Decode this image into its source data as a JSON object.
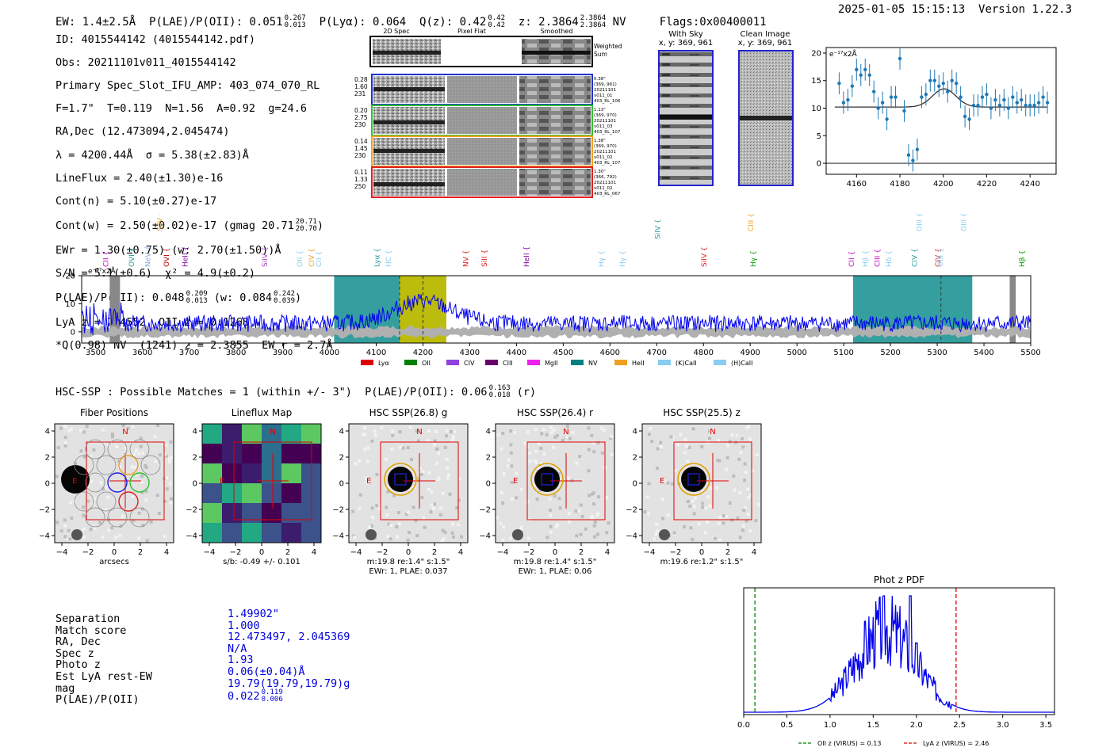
{
  "header": {
    "ew": "EW: 1.4±2.5Å",
    "plae_label": "P(LAE)/P(OII):",
    "plae_val": "0.051",
    "plae_hi": "0.267",
    "plae_lo": "0.013",
    "plya": "P(Lyα): 0.064",
    "qz_label": "Q(z): 0.42",
    "qz_hi": "0.42",
    "qz_lo": "0.42",
    "z_label": "z: 2.3864",
    "z_hi": "2.3864",
    "z_lo": "2.3864",
    "z_flag": "NV",
    "flags": "Flags:0x00400011",
    "timestamp": "2025-01-05 15:15:13",
    "version": "Version 1.22.3"
  },
  "info": {
    "l1": "ID: 4015544142 (4015544142.pdf)",
    "l2": "Obs: 20211101v011_4015544142",
    "l3": "Primary Spec_Slot_IFU_AMP: 403_074_070_RL",
    "l4": "F=1.7\"  T=0.119  N=1.56  A=0.92  g=24.6",
    "l5": "RA,Dec (12.473094,2.045474)",
    "l6": "λ = 4200.44Å  σ = 5.38(±2.83)Å",
    "l7": "LineFlux = 2.40(±1.30)e-16",
    "l8": "Cont(n) = 5.10(±0.27)e-17",
    "l9a": "Cont(w) = 2.50(±0.02)e-17 (gmag 20.71",
    "l9hi": "20.71",
    "l9lo": "20.70",
    "l9b": ")",
    "l10": "EWr = 1.30(±0.75) (w: 2.70(±1.50))Å",
    "l11": "S/N = 5.1(±0.6)  χ² = 4.9(±0.2)",
    "l12a": "P(LAE)/P(OII): 0.048",
    "l12hi": "0.209",
    "l12lo": "0.013",
    "l12b": "(w: 0.084",
    "l12hi2": "0.242",
    "l12lo2": "0.039",
    "l12c": ")",
    "l13": "LyA z = 2.4552  OII z = 0.1268",
    "l14": "*Q(0.98) NV  (1241) z = 2.3855  EW r = 2.7Å"
  },
  "cutout": {
    "col1": "2D Spec",
    "col2": "Pixel Flat",
    "col3": "Smoothed",
    "weighted": "Weighted",
    "sum": "Sum",
    "rows": [
      {
        "a": "0.28",
        "b": "1.60",
        "c": "231",
        "r1": "0.38\"",
        "r2": "(369, 961)",
        "r3": "20211101",
        "r4": "v011_01",
        "r5": "403_RL_106",
        "color": "#2030d0"
      },
      {
        "a": "0.20",
        "b": "2.75",
        "c": "230",
        "r1": "1.13\"",
        "r2": "(369, 970)",
        "r3": "20211101",
        "r4": "v011_03",
        "r5": "403_RL_107",
        "color": "#30c030"
      },
      {
        "a": "0.14",
        "b": "1.45",
        "c": "230",
        "r1": "1.38\"",
        "r2": "(369, 970)",
        "r3": "20211101",
        "r4": "v011_02",
        "r5": "403_RL_107",
        "color": "#f0a020"
      },
      {
        "a": "0.11",
        "b": "1.33",
        "c": "250",
        "r1": "1.30\"",
        "r2": "(366, 792)",
        "r3": "20211101",
        "r4": "v011_02",
        "r5": "403_RL_067",
        "color": "#e02020"
      }
    ]
  },
  "sky": {
    "t1": "With Sky",
    "s1": "x, y: 369, 961",
    "t2": "Clean Image",
    "s2": "x, y: 369, 961"
  },
  "fit_plot": {
    "unit": "e⁻¹⁷x2Å"
  },
  "spectrum": {
    "unit": "e⁻¹⁷x2Å",
    "legend": [
      "Lyα",
      "OII",
      "CIV",
      "CIII",
      "MgII",
      "NV",
      "HeII",
      "(K)CaII",
      "(H)CaII"
    ]
  },
  "lines_top": [
    "CII",
    "OVI",
    "NeV",
    "SiIV",
    "OVI",
    "HeII",
    "SiIV",
    "OII",
    "CIV",
    "CII",
    "Lyα",
    "HC",
    "NV",
    "SiII",
    "HeII",
    "Hγ",
    "Hγ",
    "SiIV",
    "SiIV",
    "CIII",
    "Hγ",
    "CII",
    "Hβ",
    "CIII",
    "Hδ",
    "CIV",
    "OIII",
    "CIV",
    "OIII",
    "OIII",
    "Hβ"
  ],
  "hsc": {
    "title": "HSC-SSP : Possible Matches = 1 (within +/- 3\")  P(LAE)/P(OII): 0.06",
    "hi": "0.163",
    "lo": "0.018",
    "tail": "(r)",
    "panels": [
      {
        "title": "Fiber Positions",
        "cap1": "arcsecs",
        "cap2": ""
      },
      {
        "title": "Lineflux Map",
        "cap1": "s/b: -0.49 +/- 0.101",
        "cap2": ""
      },
      {
        "title": "HSC SSP(26.8) g",
        "cap1": "m:19.8  re:1.4\"  s:1.5\"",
        "cap2": "EWr: 1, PLAE: 0.037"
      },
      {
        "title": "HSC SSP(26.4) r",
        "cap1": "m:19.8  re:1.4\"  s:1.5\"",
        "cap2": "EWr: 1, PLAE: 0.06"
      },
      {
        "title": "HSC SSP(25.5) z",
        "cap1": "m:19.6  re:1.2\"  s:1.5\"",
        "cap2": ""
      }
    ],
    "compass": "N",
    "east": "E"
  },
  "match": {
    "labels": [
      "Separation",
      "Match score",
      "RA, Dec",
      "Spec z",
      "Photo z",
      "Est LyA rest-EW",
      "mag",
      "P(LAE)/P(OII)"
    ],
    "values": [
      "1.49902\"",
      "1.000",
      "12.473497, 2.045369",
      "N/A",
      "1.93",
      "0.06(±0.04)Å",
      "19.79(19.79,19.79)g",
      "0.022"
    ],
    "plae_hi": "0.119",
    "plae_lo": "0.006"
  },
  "chart_data": [
    {
      "type": "scatter",
      "name": "line-fit",
      "unit": "e⁻¹⁷x2Å",
      "xlim": [
        4146,
        4252
      ],
      "ylim": [
        -2,
        21
      ],
      "xticks": [
        4160,
        4180,
        4200,
        4220,
        4240
      ],
      "yticks": [
        0,
        5,
        10,
        15,
        20
      ],
      "x": [
        4152,
        4154,
        4156,
        4158,
        4160,
        4162,
        4164,
        4166,
        4168,
        4170,
        4172,
        4174,
        4176,
        4178,
        4180,
        4182,
        4184,
        4186,
        4188,
        4190,
        4192,
        4194,
        4196,
        4198,
        4200,
        4202,
        4204,
        4206,
        4208,
        4210,
        4212,
        4214,
        4216,
        4218,
        4220,
        4222,
        4224,
        4226,
        4228,
        4230,
        4232,
        4234,
        4236,
        4238,
        4240,
        4242,
        4244,
        4246,
        4248
      ],
      "y": [
        14.5,
        11,
        11.5,
        14,
        17,
        16,
        17,
        16,
        13,
        10,
        11,
        8,
        12,
        12,
        19,
        9.5,
        1.5,
        0.5,
        2.5,
        12,
        12.5,
        15,
        15,
        14,
        14.5,
        13,
        15,
        14.5,
        12,
        8.5,
        8,
        10.5,
        10.5,
        12,
        12.5,
        10,
        11.5,
        10.5,
        11.5,
        10,
        12,
        11,
        11.5,
        10.5,
        10.5,
        10.5,
        11,
        12,
        11
      ],
      "err": 2,
      "model_base": 10.2,
      "model_amp": 3.3,
      "model_center": 4200.4,
      "model_sigma": 5.4
    },
    {
      "type": "line",
      "name": "spectrum",
      "unit": "e⁻¹⁷x2Å",
      "xlim": [
        3470,
        5500
      ],
      "ylim": [
        -4,
        20
      ],
      "xticks": [
        3500,
        3600,
        3700,
        3800,
        3900,
        4000,
        4100,
        4200,
        4300,
        4400,
        4500,
        4600,
        4700,
        4800,
        4900,
        5000,
        5100,
        5200,
        5300,
        5400,
        5500
      ],
      "yticks": [
        0,
        10,
        20
      ],
      "shaded": [
        {
          "x0": 4010,
          "x1": 4150,
          "color": "#2a9a9a"
        },
        {
          "x0": 4150,
          "x1": 4250,
          "color": "#b8b800"
        },
        {
          "x0": 5120,
          "x1": 5375,
          "color": "#2a9a9a"
        }
      ],
      "vlines_dashed": [
        4150,
        4200,
        5308
      ],
      "grey_bars": [
        [
          3530,
          3552
        ],
        [
          5455,
          5468
        ]
      ],
      "continuum": 3,
      "peak_center": 4200,
      "peak_amp": 8,
      "peak_sigma": 60,
      "noise": 3
    },
    {
      "type": "line",
      "name": "phot-z-pdf",
      "title": "Phot z PDF",
      "xlim": [
        0,
        3.6
      ],
      "xticks": [
        0.0,
        0.5,
        1.0,
        1.5,
        2.0,
        2.5,
        3.0,
        3.5
      ],
      "vlines": [
        {
          "x": 0.13,
          "color": "#008000",
          "label": "OII z (VIRUS) = 0.13"
        },
        {
          "x": 2.46,
          "color": "#e00000",
          "label": "LyA z (VIRUS) = 2.46"
        }
      ],
      "peak_z": 1.93
    }
  ]
}
